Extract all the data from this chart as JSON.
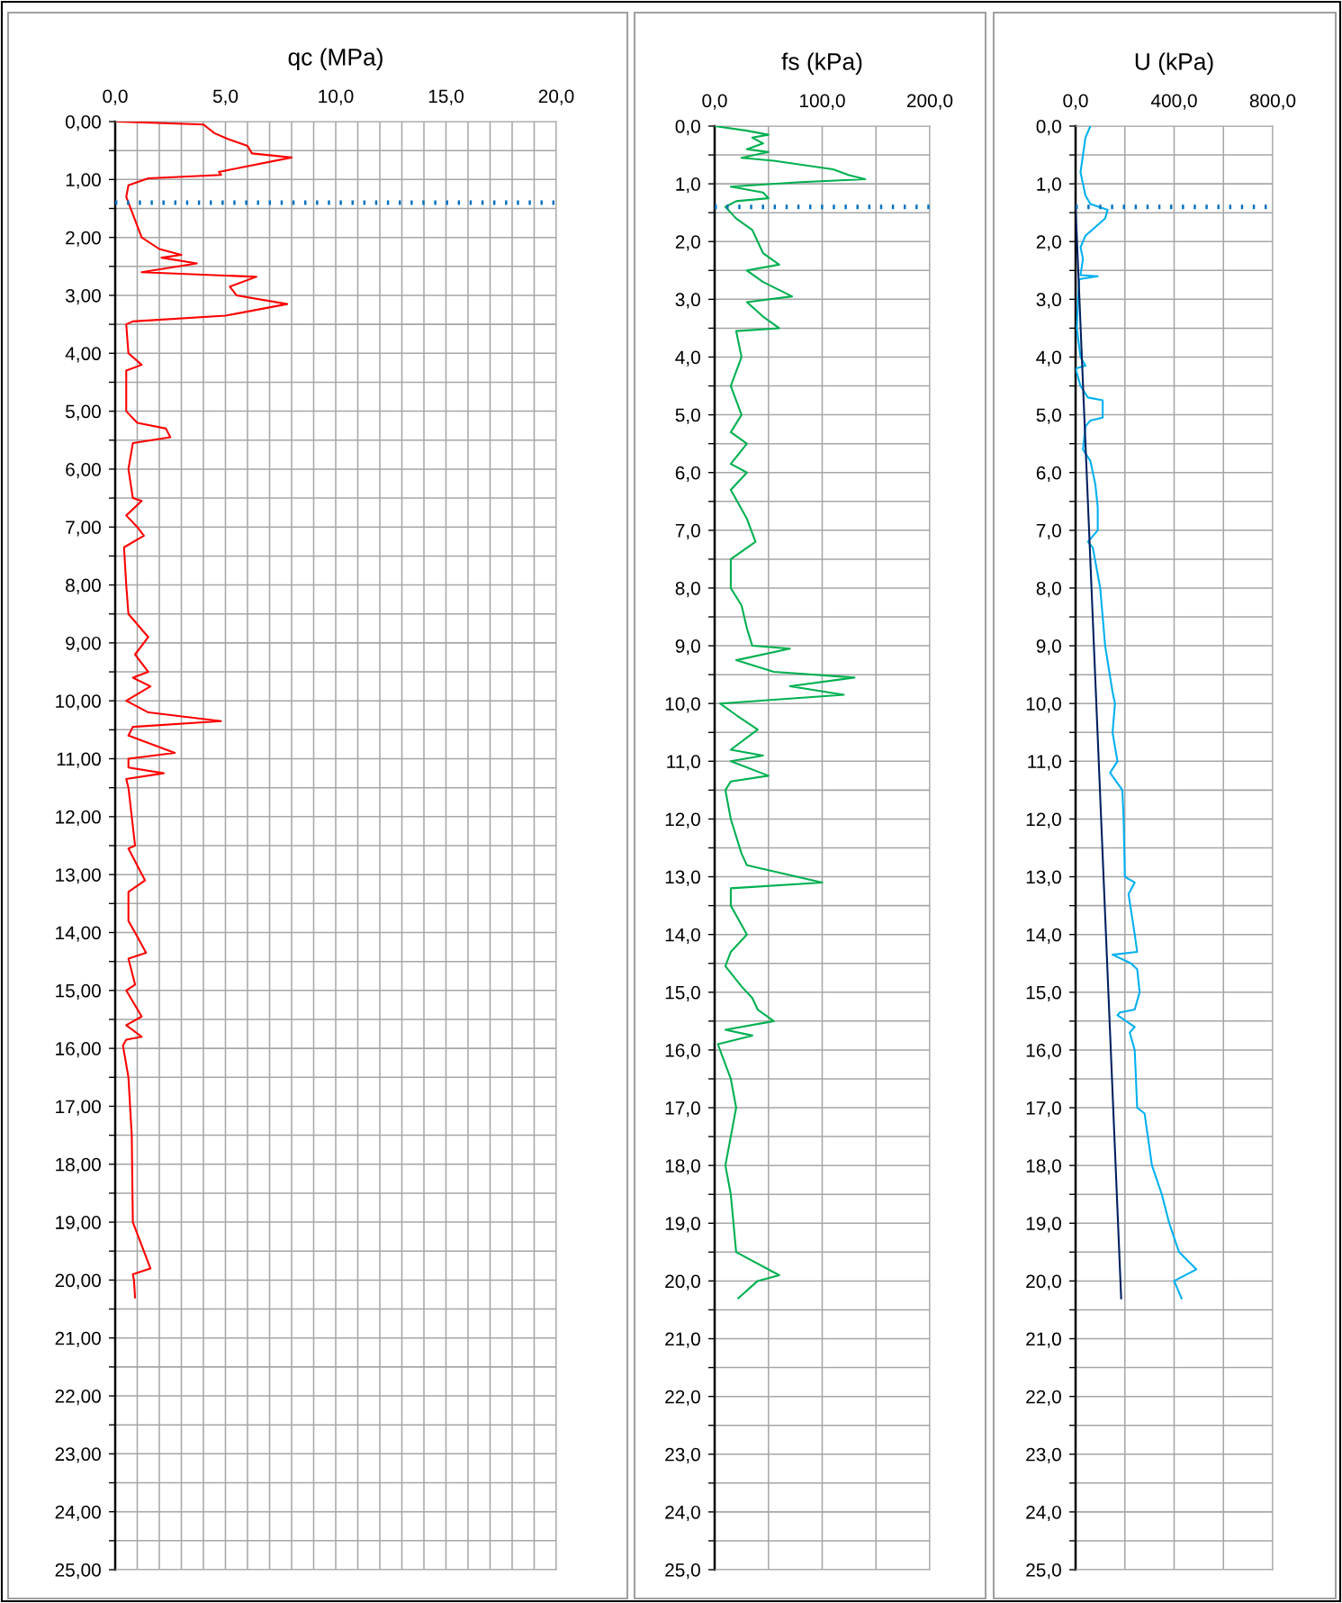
{
  "chart_data": [
    {
      "type": "line",
      "title": "qc (MPa)",
      "grid": true,
      "xlim": [
        0,
        20
      ],
      "ylim": [
        25,
        0
      ],
      "xticks": [
        {
          "value": 0,
          "label": "0,0"
        },
        {
          "value": 1,
          "label": null
        },
        {
          "value": 2,
          "label": null
        },
        {
          "value": 3,
          "label": null
        },
        {
          "value": 4,
          "label": null
        },
        {
          "value": 5,
          "label": "5,0"
        },
        {
          "value": 6,
          "label": null
        },
        {
          "value": 7,
          "label": null
        },
        {
          "value": 8,
          "label": null
        },
        {
          "value": 9,
          "label": null
        },
        {
          "value": 10,
          "label": "10,0"
        },
        {
          "value": 11,
          "label": null
        },
        {
          "value": 12,
          "label": null
        },
        {
          "value": 13,
          "label": null
        },
        {
          "value": 14,
          "label": null
        },
        {
          "value": 15,
          "label": "15,0"
        },
        {
          "value": 16,
          "label": null
        },
        {
          "value": 17,
          "label": null
        },
        {
          "value": 18,
          "label": null
        },
        {
          "value": 19,
          "label": null
        },
        {
          "value": 20,
          "label": "20,0"
        }
      ],
      "yticks": [
        {
          "value": 0,
          "label": "0,00"
        },
        {
          "value": 0.5,
          "label": null
        },
        {
          "value": 1,
          "label": "1,00"
        },
        {
          "value": 1.5,
          "label": null
        },
        {
          "value": 2,
          "label": "2,00"
        },
        {
          "value": 2.5,
          "label": null
        },
        {
          "value": 3,
          "label": "3,00"
        },
        {
          "value": 3.5,
          "label": null
        },
        {
          "value": 4,
          "label": "4,00"
        },
        {
          "value": 4.5,
          "label": null
        },
        {
          "value": 5,
          "label": "5,00"
        },
        {
          "value": 5.5,
          "label": null
        },
        {
          "value": 6,
          "label": "6,00"
        },
        {
          "value": 6.5,
          "label": null
        },
        {
          "value": 7,
          "label": "7,00"
        },
        {
          "value": 7.5,
          "label": null
        },
        {
          "value": 8,
          "label": "8,00"
        },
        {
          "value": 8.5,
          "label": null
        },
        {
          "value": 9,
          "label": "9,00"
        },
        {
          "value": 9.5,
          "label": null
        },
        {
          "value": 10,
          "label": "10,00"
        },
        {
          "value": 10.5,
          "label": null
        },
        {
          "value": 11,
          "label": "11,00"
        },
        {
          "value": 11.5,
          "label": null
        },
        {
          "value": 12,
          "label": "12,00"
        },
        {
          "value": 12.5,
          "label": null
        },
        {
          "value": 13,
          "label": "13,00"
        },
        {
          "value": 13.5,
          "label": null
        },
        {
          "value": 14,
          "label": "14,00"
        },
        {
          "value": 14.5,
          "label": null
        },
        {
          "value": 15,
          "label": "15,00"
        },
        {
          "value": 15.5,
          "label": null
        },
        {
          "value": 16,
          "label": "16,00"
        },
        {
          "value": 16.5,
          "label": null
        },
        {
          "value": 17,
          "label": "17,00"
        },
        {
          "value": 17.5,
          "label": null
        },
        {
          "value": 18,
          "label": "18,00"
        },
        {
          "value": 18.5,
          "label": null
        },
        {
          "value": 19,
          "label": "19,00"
        },
        {
          "value": 19.5,
          "label": null
        },
        {
          "value": 20,
          "label": "20,00"
        },
        {
          "value": 20.5,
          "label": null
        },
        {
          "value": 21,
          "label": "21,00"
        },
        {
          "value": 21.5,
          "label": null
        },
        {
          "value": 22,
          "label": "22,00"
        },
        {
          "value": 22.5,
          "label": null
        },
        {
          "value": 23,
          "label": "23,00"
        },
        {
          "value": 23.5,
          "label": null
        },
        {
          "value": 24,
          "label": "24,00"
        },
        {
          "value": 24.5,
          "label": null
        },
        {
          "value": 25,
          "label": "25,00"
        }
      ],
      "ref_lines": [
        {
          "axis": "y",
          "value": 1.4,
          "color": "#0070c0",
          "line_style": "dotted"
        }
      ],
      "series": [
        {
          "color": "#ff0000",
          "x": [
            0.1,
            4.0,
            4.5,
            5.1,
            6.0,
            6.2,
            8.0,
            4.7,
            4.8,
            1.5,
            0.6,
            0.5,
            0.8,
            1.2,
            2.0,
            3.0,
            2.1,
            3.7,
            1.2,
            6.4,
            5.2,
            5.5,
            7.8,
            5.0,
            0.8,
            0.5,
            0.6,
            1.2,
            0.5,
            0.5,
            1.0,
            2.3,
            2.5,
            0.8,
            0.6,
            0.8,
            1.2,
            0.5,
            1.0,
            1.3,
            0.4,
            0.5,
            0.6,
            1.5,
            0.9,
            1.5,
            0.8,
            1.6,
            0.5,
            1.5,
            4.8,
            0.8,
            0.6,
            2.7,
            0.6,
            0.6,
            2.2,
            0.5,
            0.6,
            0.9,
            0.6,
            1.35,
            0.6,
            0.6,
            0.9,
            1.4,
            0.6,
            0.9,
            0.5,
            1.2,
            0.5,
            1.2,
            0.5,
            0.35,
            0.6,
            0.75,
            0.8,
            1.6,
            0.8,
            0.85,
            0.9
          ],
          "values": [
            0,
            0.05,
            0.2,
            0.3,
            0.42,
            0.55,
            0.62,
            0.87,
            0.92,
            0.98,
            1.1,
            1.3,
            1.6,
            2.0,
            2.2,
            2.3,
            2.35,
            2.45,
            2.6,
            2.68,
            2.85,
            3.0,
            3.15,
            3.35,
            3.45,
            3.5,
            4.0,
            4.2,
            4.3,
            5.0,
            5.2,
            5.3,
            5.45,
            5.55,
            6.0,
            6.5,
            6.55,
            6.8,
            7.0,
            7.15,
            7.35,
            8.0,
            8.5,
            8.9,
            9.2,
            9.5,
            9.6,
            9.75,
            10.0,
            10.2,
            10.35,
            10.45,
            10.6,
            10.9,
            11.0,
            11.15,
            11.25,
            11.35,
            11.5,
            12.5,
            12.55,
            13.1,
            13.3,
            13.8,
            14.0,
            14.35,
            14.45,
            14.9,
            15.0,
            15.45,
            15.6,
            15.8,
            15.85,
            15.95,
            16.5,
            17.5,
            19.0,
            19.8,
            19.9,
            20.0,
            20.3
          ]
        }
      ]
    },
    {
      "type": "line",
      "title": "fs (kPa)",
      "grid": true,
      "xlim": [
        0,
        200
      ],
      "ylim": [
        25,
        0
      ],
      "xticks": [
        {
          "value": 0,
          "label": "0,0"
        },
        {
          "value": 50,
          "label": null
        },
        {
          "value": 100,
          "label": "100,0"
        },
        {
          "value": 150,
          "label": null
        },
        {
          "value": 200,
          "label": "200,0"
        }
      ],
      "yticks": [
        {
          "value": 0,
          "label": "0,0"
        },
        {
          "value": 0.5,
          "label": null
        },
        {
          "value": 1,
          "label": "1,0"
        },
        {
          "value": 1.5,
          "label": null
        },
        {
          "value": 2,
          "label": "2,0"
        },
        {
          "value": 2.5,
          "label": null
        },
        {
          "value": 3,
          "label": "3,0"
        },
        {
          "value": 3.5,
          "label": null
        },
        {
          "value": 4,
          "label": "4,0"
        },
        {
          "value": 4.5,
          "label": null
        },
        {
          "value": 5,
          "label": "5,0"
        },
        {
          "value": 5.5,
          "label": null
        },
        {
          "value": 6,
          "label": "6,0"
        },
        {
          "value": 6.5,
          "label": null
        },
        {
          "value": 7,
          "label": "7,0"
        },
        {
          "value": 7.5,
          "label": null
        },
        {
          "value": 8,
          "label": "8,0"
        },
        {
          "value": 8.5,
          "label": null
        },
        {
          "value": 9,
          "label": "9,0"
        },
        {
          "value": 9.5,
          "label": null
        },
        {
          "value": 10,
          "label": "10,0"
        },
        {
          "value": 10.5,
          "label": null
        },
        {
          "value": 11,
          "label": "11,0"
        },
        {
          "value": 11.5,
          "label": null
        },
        {
          "value": 12,
          "label": "12,0"
        },
        {
          "value": 12.5,
          "label": null
        },
        {
          "value": 13,
          "label": "13,0"
        },
        {
          "value": 13.5,
          "label": null
        },
        {
          "value": 14,
          "label": "14,0"
        },
        {
          "value": 14.5,
          "label": null
        },
        {
          "value": 15,
          "label": "15,0"
        },
        {
          "value": 15.5,
          "label": null
        },
        {
          "value": 16,
          "label": "16,0"
        },
        {
          "value": 16.5,
          "label": null
        },
        {
          "value": 17,
          "label": "17,0"
        },
        {
          "value": 17.5,
          "label": null
        },
        {
          "value": 18,
          "label": "18,0"
        },
        {
          "value": 18.5,
          "label": null
        },
        {
          "value": 19,
          "label": "19,0"
        },
        {
          "value": 19.5,
          "label": null
        },
        {
          "value": 20,
          "label": "20,0"
        },
        {
          "value": 20.5,
          "label": null
        },
        {
          "value": 21,
          "label": "21,0"
        },
        {
          "value": 21.5,
          "label": null
        },
        {
          "value": 22,
          "label": "22,0"
        },
        {
          "value": 22.5,
          "label": null
        },
        {
          "value": 23,
          "label": "23,0"
        },
        {
          "value": 23.5,
          "label": null
        },
        {
          "value": 24,
          "label": "24,0"
        },
        {
          "value": 24.5,
          "label": null
        },
        {
          "value": 25,
          "label": "25,0"
        }
      ],
      "ref_lines": [
        {
          "axis": "y",
          "value": 1.4,
          "color": "#0070c0",
          "line_style": "dotted"
        }
      ],
      "series": [
        {
          "color": "#00b050",
          "x": [
            0,
            30,
            50,
            35,
            45,
            30,
            50,
            25,
            55,
            110,
            125,
            140,
            80,
            15,
            45,
            50,
            20,
            10,
            20,
            35,
            40,
            45,
            60,
            30,
            45,
            72,
            30,
            45,
            60,
            20,
            25,
            15,
            25,
            15,
            30,
            15,
            30,
            15,
            30,
            38,
            15,
            15,
            25,
            30,
            35,
            70,
            20,
            55,
            130,
            70,
            120,
            5,
            20,
            40,
            15,
            45,
            15,
            50,
            15,
            10,
            15,
            25,
            30,
            100,
            15,
            15,
            30,
            15,
            10,
            25,
            35,
            40,
            55,
            10,
            35,
            3,
            15,
            20,
            10,
            15,
            20,
            60,
            40,
            22
          ],
          "values": [
            0,
            0.08,
            0.15,
            0.2,
            0.3,
            0.4,
            0.45,
            0.55,
            0.6,
            0.75,
            0.85,
            0.92,
            0.97,
            1.05,
            1.15,
            1.25,
            1.3,
            1.4,
            1.6,
            1.8,
            2.0,
            2.2,
            2.4,
            2.5,
            2.7,
            2.95,
            3.05,
            3.3,
            3.5,
            3.55,
            4.0,
            4.5,
            5.0,
            5.3,
            5.5,
            5.85,
            6.0,
            6.3,
            6.8,
            7.2,
            7.5,
            8.0,
            8.3,
            8.7,
            9.0,
            9.05,
            9.25,
            9.45,
            9.55,
            9.7,
            9.85,
            10.0,
            10.2,
            10.45,
            10.8,
            10.9,
            11.0,
            11.25,
            11.35,
            11.5,
            12.0,
            12.6,
            12.8,
            13.1,
            13.2,
            13.5,
            14.0,
            14.3,
            14.55,
            14.9,
            15.1,
            15.3,
            15.5,
            15.65,
            15.75,
            15.9,
            16.5,
            17.0,
            18.0,
            18.5,
            19.5,
            19.9,
            20.0,
            20.3
          ]
        }
      ]
    },
    {
      "type": "line",
      "title": "U (kPa)",
      "grid": true,
      "xlim": [
        0,
        800
      ],
      "ylim": [
        25,
        0
      ],
      "xticks": [
        {
          "value": 0,
          "label": "0,0"
        },
        {
          "value": 200,
          "label": null
        },
        {
          "value": 400,
          "label": "400,0"
        },
        {
          "value": 600,
          "label": null
        },
        {
          "value": 800,
          "label": "800,0"
        }
      ],
      "yticks": [
        {
          "value": 0,
          "label": "0,0"
        },
        {
          "value": 0.5,
          "label": null
        },
        {
          "value": 1,
          "label": "1,0"
        },
        {
          "value": 1.5,
          "label": null
        },
        {
          "value": 2,
          "label": "2,0"
        },
        {
          "value": 2.5,
          "label": null
        },
        {
          "value": 3,
          "label": "3,0"
        },
        {
          "value": 3.5,
          "label": null
        },
        {
          "value": 4,
          "label": "4,0"
        },
        {
          "value": 4.5,
          "label": null
        },
        {
          "value": 5,
          "label": "5,0"
        },
        {
          "value": 5.5,
          "label": null
        },
        {
          "value": 6,
          "label": "6,0"
        },
        {
          "value": 6.5,
          "label": null
        },
        {
          "value": 7,
          "label": "7,0"
        },
        {
          "value": 7.5,
          "label": null
        },
        {
          "value": 8,
          "label": "8,0"
        },
        {
          "value": 8.5,
          "label": null
        },
        {
          "value": 9,
          "label": "9,0"
        },
        {
          "value": 9.5,
          "label": null
        },
        {
          "value": 10,
          "label": "10,0"
        },
        {
          "value": 10.5,
          "label": null
        },
        {
          "value": 11,
          "label": "11,0"
        },
        {
          "value": 11.5,
          "label": null
        },
        {
          "value": 12,
          "label": "12,0"
        },
        {
          "value": 12.5,
          "label": null
        },
        {
          "value": 13,
          "label": "13,0"
        },
        {
          "value": 13.5,
          "label": null
        },
        {
          "value": 14,
          "label": "14,0"
        },
        {
          "value": 14.5,
          "label": null
        },
        {
          "value": 15,
          "label": "15,0"
        },
        {
          "value": 15.5,
          "label": null
        },
        {
          "value": 16,
          "label": "16,0"
        },
        {
          "value": 16.5,
          "label": null
        },
        {
          "value": 17,
          "label": "17,0"
        },
        {
          "value": 17.5,
          "label": null
        },
        {
          "value": 18,
          "label": "18,0"
        },
        {
          "value": 18.5,
          "label": null
        },
        {
          "value": 19,
          "label": "19,0"
        },
        {
          "value": 19.5,
          "label": null
        },
        {
          "value": 20,
          "label": "20,0"
        },
        {
          "value": 20.5,
          "label": null
        },
        {
          "value": 21,
          "label": "21,0"
        },
        {
          "value": 21.5,
          "label": null
        },
        {
          "value": 22,
          "label": "22,0"
        },
        {
          "value": 22.5,
          "label": null
        },
        {
          "value": 23,
          "label": "23,0"
        },
        {
          "value": 23.5,
          "label": null
        },
        {
          "value": 24,
          "label": "24,0"
        },
        {
          "value": 24.5,
          "label": null
        },
        {
          "value": 25,
          "label": "25,0"
        }
      ],
      "ref_lines": [
        {
          "axis": "y",
          "value": 1.4,
          "color": "#0070c0",
          "line_style": "dotted"
        }
      ],
      "series": [
        {
          "color": "#00b0f0",
          "x": [
            60,
            40,
            30,
            20,
            30,
            40,
            60,
            130,
            120,
            80,
            40,
            20,
            30,
            20,
            90,
            15,
            10,
            5,
            20,
            40,
            0,
            20,
            50,
            110,
            110,
            60,
            40,
            30,
            60,
            80,
            90,
            90,
            50,
            70,
            100,
            120,
            150,
            160,
            150,
            170,
            140,
            190,
            195,
            200,
            240,
            215,
            240,
            250,
            150,
            225,
            250,
            260,
            240,
            180,
            170,
            240,
            220,
            240,
            250,
            280,
            310,
            350,
            380,
            420,
            490,
            400,
            430
          ],
          "values": [
            0,
            0.2,
            0.5,
            0.8,
            1.0,
            1.2,
            1.35,
            1.45,
            1.6,
            1.75,
            1.9,
            2.1,
            2.3,
            2.58,
            2.6,
            2.65,
            3.0,
            3.5,
            4.0,
            4.15,
            4.2,
            4.5,
            4.7,
            4.75,
            5.05,
            5.1,
            5.2,
            5.6,
            5.8,
            6.2,
            6.6,
            7.0,
            7.2,
            7.3,
            8.0,
            9.0,
            9.8,
            10.0,
            10.5,
            11.0,
            11.2,
            11.5,
            12.0,
            13.0,
            13.1,
            13.3,
            14.0,
            14.3,
            14.35,
            14.5,
            14.6,
            15.0,
            15.3,
            15.35,
            15.4,
            15.6,
            15.7,
            16.0,
            17.0,
            17.1,
            18.0,
            18.5,
            19.0,
            19.5,
            19.8,
            20.0,
            20.3
          ]
        },
        {
          "color": "#002060",
          "x": [
            0,
            185
          ],
          "values": [
            1.4,
            20.3
          ]
        }
      ]
    }
  ]
}
